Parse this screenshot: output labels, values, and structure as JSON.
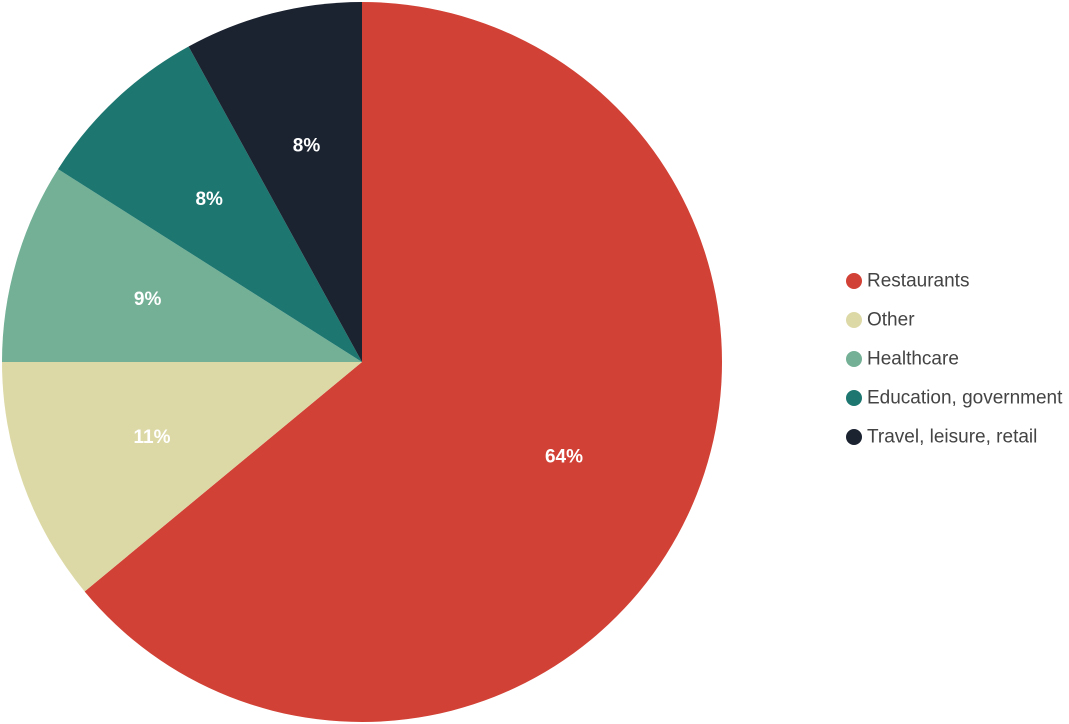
{
  "chart_data": {
    "type": "pie",
    "title": "",
    "legend_position": "right",
    "start_direction": "top, clockwise",
    "slices": [
      {
        "label": "Restaurants",
        "value": 64,
        "display": "64%",
        "color": "#d24135"
      },
      {
        "label": "Other",
        "value": 11,
        "display": "11%",
        "color": "#ddd9a7"
      },
      {
        "label": "Healthcare",
        "value": 9,
        "display": "9%",
        "color": "#73b096"
      },
      {
        "label": "Education, government",
        "value": 8,
        "display": "8%",
        "color": "#1d7670"
      },
      {
        "label": "Travel, leisure, retail",
        "value": 8,
        "display": "8%",
        "color": "#1b2230"
      }
    ]
  }
}
